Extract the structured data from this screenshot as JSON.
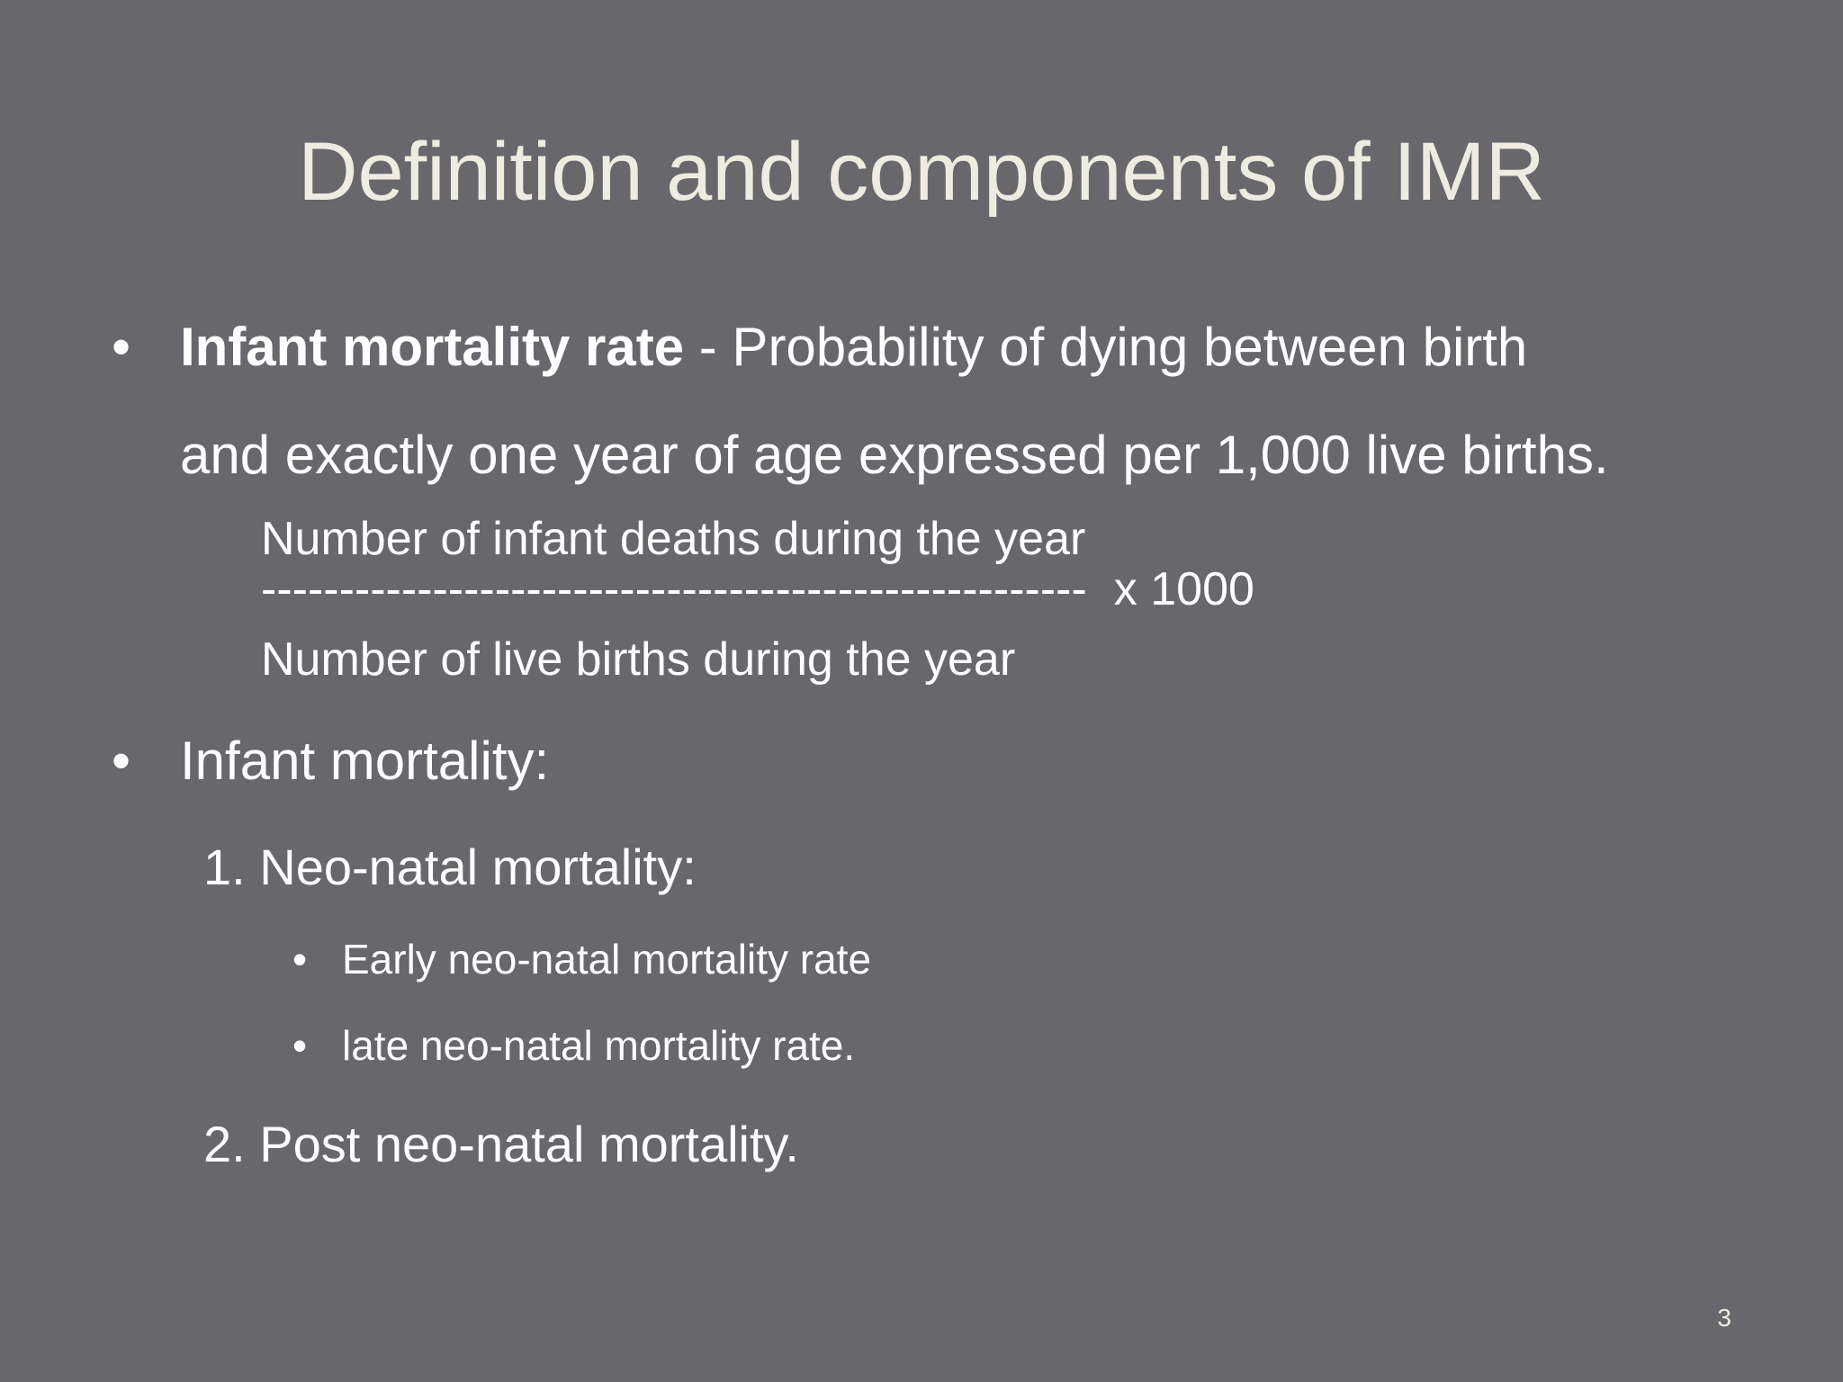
{
  "slide": {
    "title": "Definition and components of IMR",
    "bullet1": {
      "marker": "•",
      "term": "Infant mortality rate",
      "text_line1": " - Probability of dying between birth",
      "text_line2": "and exactly one year of age expressed per 1,000 live births."
    },
    "formula": {
      "numerator": "Number of infant deaths during the year",
      "divider": "-----------------------------------------------------",
      "multiplier": "x 1000",
      "denominator": "Number of live births during the year"
    },
    "bullet2": {
      "marker": "•",
      "text": "Infant mortality:"
    },
    "item1": "1. Neo-natal mortality:",
    "sub_items": [
      {
        "marker": "•",
        "text": "Early neo-natal mortality rate"
      },
      {
        "marker": "•",
        "text": "late neo-natal mortality rate."
      }
    ],
    "item2": "2.  Post neo-natal mortality.",
    "page_number": "3"
  }
}
